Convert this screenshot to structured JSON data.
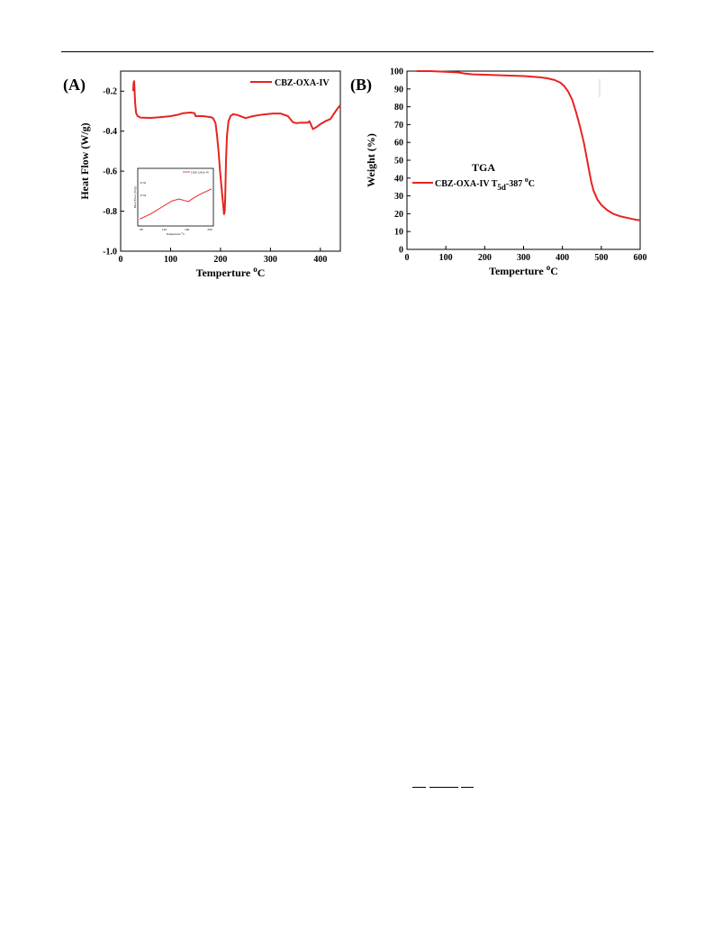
{
  "panels": {
    "a_label": "(A)",
    "b_label": "(B)"
  },
  "chart_data": [
    {
      "type": "line",
      "id": "dsc",
      "xlabel": "Temperture",
      "xlabel_unit_sup": "o",
      "xlabel_unit": "C",
      "ylabel": "Heat Flow (W/g)",
      "xlim": [
        0,
        440
      ],
      "ylim": [
        -1.0,
        -0.1
      ],
      "xticks": [
        0,
        100,
        200,
        300,
        400
      ],
      "yticks": [
        -1.0,
        -0.8,
        -0.6,
        -0.4,
        -0.2
      ],
      "ytick_labels": [
        "-1.0",
        "-0.8",
        "-0.6",
        "-0.4",
        "-0.2"
      ],
      "legend_position": "top-right",
      "series": [
        {
          "name": "CBZ-OXA-IV",
          "color": "#e8231f",
          "points": [
            [
              25,
              -0.2
            ],
            [
              26,
              -0.16
            ],
            [
              27,
              -0.15
            ],
            [
              28,
              -0.2
            ],
            [
              29,
              -0.26
            ],
            [
              31,
              -0.31
            ],
            [
              34,
              -0.325
            ],
            [
              40,
              -0.332
            ],
            [
              60,
              -0.334
            ],
            [
              80,
              -0.33
            ],
            [
              100,
              -0.325
            ],
            [
              115,
              -0.318
            ],
            [
              125,
              -0.31
            ],
            [
              140,
              -0.307
            ],
            [
              148,
              -0.31
            ],
            [
              150,
              -0.325
            ],
            [
              165,
              -0.325
            ],
            [
              180,
              -0.33
            ],
            [
              185,
              -0.335
            ],
            [
              190,
              -0.36
            ],
            [
              193,
              -0.42
            ],
            [
              196,
              -0.5
            ],
            [
              199,
              -0.6
            ],
            [
              202,
              -0.68
            ],
            [
              205,
              -0.76
            ],
            [
              207,
              -0.815
            ],
            [
              208.5,
              -0.8
            ],
            [
              209.5,
              -0.72
            ],
            [
              211,
              -0.55
            ],
            [
              213,
              -0.42
            ],
            [
              216,
              -0.35
            ],
            [
              220,
              -0.325
            ],
            [
              225,
              -0.315
            ],
            [
              235,
              -0.32
            ],
            [
              250,
              -0.335
            ],
            [
              265,
              -0.325
            ],
            [
              285,
              -0.317
            ],
            [
              305,
              -0.312
            ],
            [
              320,
              -0.312
            ],
            [
              335,
              -0.325
            ],
            [
              345,
              -0.355
            ],
            [
              352,
              -0.36
            ],
            [
              362,
              -0.358
            ],
            [
              375,
              -0.358
            ],
            [
              378,
              -0.35
            ],
            [
              380,
              -0.36
            ],
            [
              385,
              -0.39
            ],
            [
              392,
              -0.38
            ],
            [
              400,
              -0.365
            ],
            [
              410,
              -0.35
            ],
            [
              420,
              -0.34
            ],
            [
              428,
              -0.31
            ],
            [
              435,
              -0.285
            ],
            [
              440,
              -0.27
            ]
          ]
        }
      ],
      "inset": {
        "legend": "CBZ-OXA-IV",
        "ylabel": "Heat Flow (W/g)",
        "xlabel": "Temperture",
        "xlabel_unit_sup": "o",
        "xlabel_unit": "C",
        "xticks": [
          "80",
          "120",
          "160",
          "200"
        ],
        "yticks": [
          "-0.32",
          "-0.34"
        ],
        "points": [
          [
            0.0,
            0.1
          ],
          [
            0.15,
            0.2
          ],
          [
            0.3,
            0.33
          ],
          [
            0.45,
            0.46
          ],
          [
            0.55,
            0.5
          ],
          [
            0.62,
            0.47
          ],
          [
            0.68,
            0.45
          ],
          [
            0.75,
            0.52
          ],
          [
            0.85,
            0.6
          ],
          [
            1.0,
            0.7
          ]
        ]
      }
    },
    {
      "type": "line",
      "id": "tga",
      "title": "TGA",
      "xlabel": "Temperture",
      "xlabel_unit_sup": "o",
      "xlabel_unit": "C",
      "ylabel": "Weight (%)",
      "xlim": [
        0,
        600
      ],
      "ylim": [
        0,
        100
      ],
      "xticks": [
        0,
        100,
        200,
        300,
        400,
        500,
        600
      ],
      "yticks": [
        0,
        10,
        20,
        30,
        40,
        50,
        60,
        70,
        80,
        90,
        100
      ],
      "legend_position": "middle-left",
      "series": [
        {
          "name": "CBZ-OXA-IV",
          "legend_suffix": "T",
          "legend_sub": "5d",
          "legend_mid": "-387 ",
          "legend_sup": "o",
          "legend_end": "C",
          "color": "#e8231f",
          "points": [
            [
              25,
              100
            ],
            [
              60,
              100
            ],
            [
              100,
              99.6
            ],
            [
              130,
              99.3
            ],
            [
              150,
              98.6
            ],
            [
              170,
              98.2
            ],
            [
              200,
              98.0
            ],
            [
              250,
              97.6
            ],
            [
              300,
              97.2
            ],
            [
              340,
              96.6
            ],
            [
              360,
              96.0
            ],
            [
              380,
              95.0
            ],
            [
              395,
              93.5
            ],
            [
              405,
              91.5
            ],
            [
              415,
              88.5
            ],
            [
              425,
              84
            ],
            [
              435,
              77
            ],
            [
              445,
              69
            ],
            [
              455,
              60
            ],
            [
              462,
              52
            ],
            [
              468,
              45
            ],
            [
              474,
              38
            ],
            [
              480,
              33
            ],
            [
              490,
              28
            ],
            [
              500,
              25
            ],
            [
              515,
              22
            ],
            [
              530,
              20
            ],
            [
              550,
              18.5
            ],
            [
              570,
              17.5
            ],
            [
              585,
              16.8
            ],
            [
              600,
              16.3
            ]
          ]
        }
      ]
    }
  ],
  "colors": {
    "series": "#e8231f",
    "axis": "#000000"
  }
}
